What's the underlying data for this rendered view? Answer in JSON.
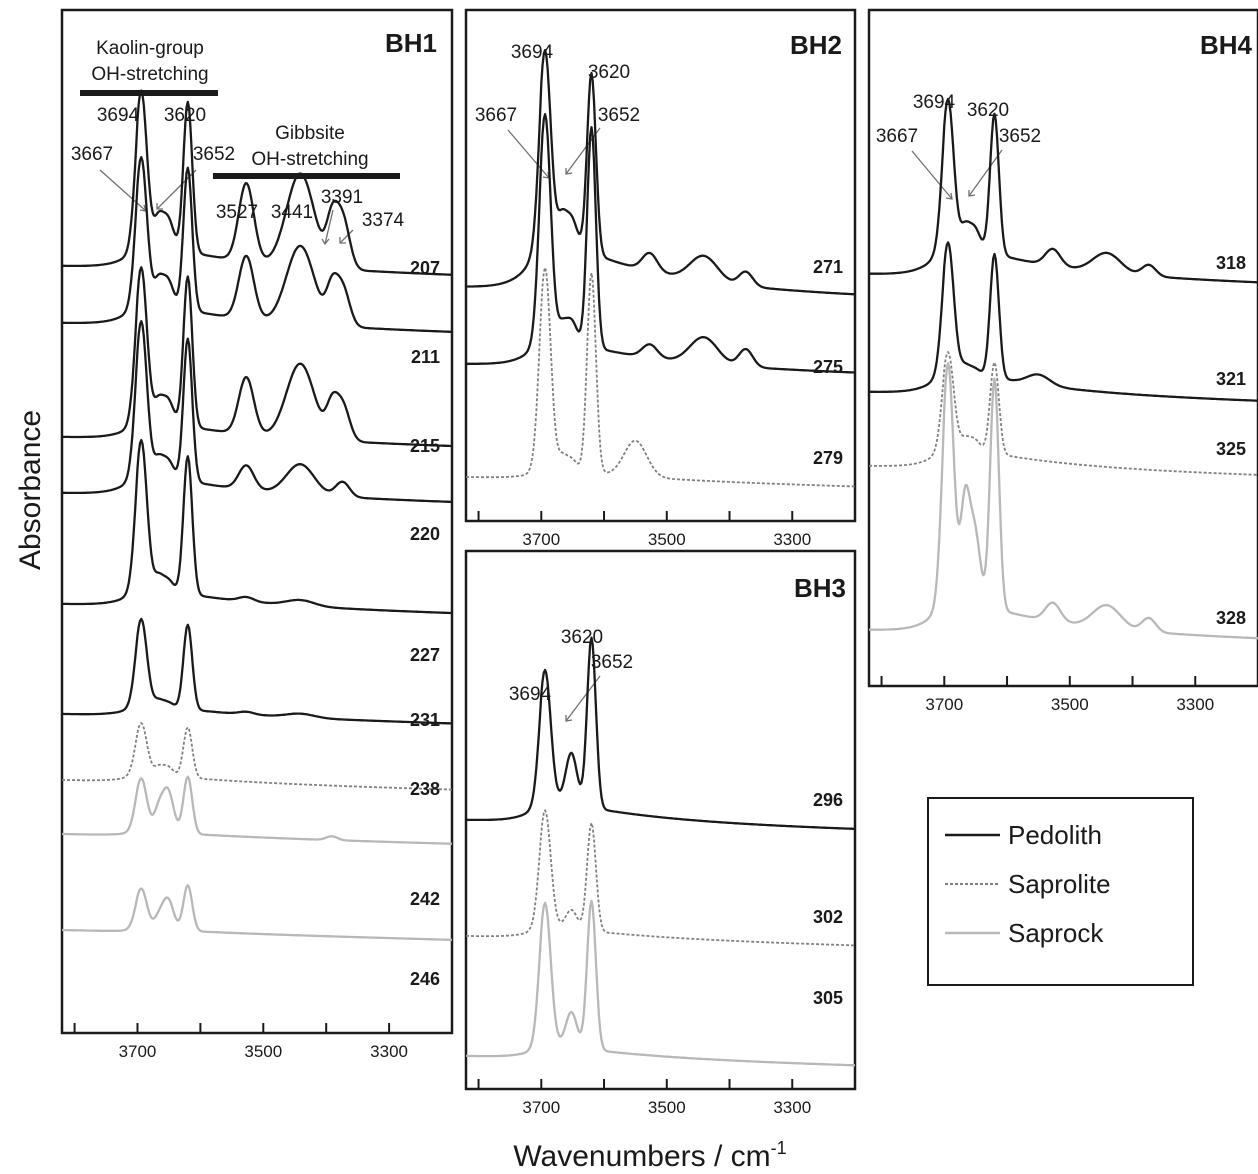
{
  "figure": {
    "ylabel": "Absorbance",
    "xlabel": "Wavenumbers / cm",
    "xlabel_superscript": "-1"
  },
  "colors": {
    "Pedolith": "#1a1a1a",
    "Saprolite": "#808080",
    "Saprock": "#b8b8b8"
  },
  "legend": {
    "items": [
      {
        "label": "Pedolith",
        "style": "solid",
        "color": "#1a1a1a"
      },
      {
        "label": "Saprolite",
        "style": "dashed",
        "color": "#808080"
      },
      {
        "label": "Saprock",
        "style": "solid",
        "color": "#b8b8b8"
      }
    ]
  },
  "chart_data": [
    {
      "type": "line",
      "title": "BH1",
      "xlim": [
        3820,
        3200
      ],
      "xticks": [
        3700,
        3500,
        3300
      ],
      "grid": false,
      "band_labels": [
        {
          "lines": [
            "Kaolin-group",
            "OH-stretching"
          ]
        },
        {
          "lines": [
            "Gibbsite",
            "OH-stretching"
          ]
        }
      ],
      "peak_labels": [
        "3694",
        "3620",
        "3667",
        "3652",
        "3527",
        "3441",
        "3391",
        "3374"
      ],
      "series": [
        {
          "name": "207",
          "layer": "Pedolith",
          "peaks": [
            [
              3694,
              1.0
            ],
            [
              3620,
              1.0
            ],
            [
              3667,
              0.16
            ],
            [
              3652,
              0.2
            ],
            [
              3527,
              0.52
            ],
            [
              3441,
              0.62
            ],
            [
              3391,
              0.28
            ],
            [
              3374,
              0.34
            ]
          ]
        },
        {
          "name": "211",
          "layer": "Pedolith",
          "peaks": [
            [
              3694,
              0.95
            ],
            [
              3620,
              0.95
            ],
            [
              3667,
              0.14
            ],
            [
              3652,
              0.18
            ],
            [
              3527,
              0.42
            ],
            [
              3441,
              0.52
            ],
            [
              3391,
              0.22
            ],
            [
              3374,
              0.26
            ]
          ]
        },
        {
          "name": "215",
          "layer": "Pedolith",
          "peaks": [
            [
              3694,
              1.0
            ],
            [
              3620,
              1.0
            ],
            [
              3667,
              0.12
            ],
            [
              3652,
              0.16
            ],
            [
              3527,
              0.38
            ],
            [
              3441,
              0.5
            ],
            [
              3391,
              0.2
            ],
            [
              3374,
              0.24
            ]
          ]
        },
        {
          "name": "220",
          "layer": "Pedolith",
          "peaks": [
            [
              3694,
              1.0
            ],
            [
              3620,
              0.95
            ],
            [
              3667,
              0.1
            ],
            [
              3652,
              0.12
            ],
            [
              3527,
              0.16
            ],
            [
              3441,
              0.2
            ],
            [
              3374,
              0.1
            ]
          ]
        },
        {
          "name": "227",
          "layer": "Pedolith",
          "peaks": [
            [
              3694,
              1.0
            ],
            [
              3620,
              0.95
            ],
            [
              3667,
              0.08
            ],
            [
              3652,
              0.08
            ],
            [
              3527,
              0.03
            ],
            [
              3441,
              0.04
            ]
          ]
        },
        {
          "name": "231",
          "layer": "Pedolith",
          "peaks": [
            [
              3694,
              0.65
            ],
            [
              3620,
              0.65
            ],
            [
              3667,
              0.04
            ],
            [
              3652,
              0.04
            ],
            [
              3527,
              0.02
            ],
            [
              3441,
              0.03
            ]
          ]
        },
        {
          "name": "238",
          "layer": "Saprolite",
          "peaks": [
            [
              3694,
              0.42
            ],
            [
              3620,
              0.42
            ],
            [
              3667,
              0.06
            ],
            [
              3652,
              0.08
            ]
          ]
        },
        {
          "name": "242",
          "layer": "Saprock",
          "peaks": [
            [
              3694,
              0.55
            ],
            [
              3620,
              0.6
            ],
            [
              3667,
              0.2
            ],
            [
              3652,
              0.45
            ],
            [
              3391,
              0.04
            ]
          ]
        },
        {
          "name": "246",
          "layer": "Saprock",
          "peaks": [
            [
              3694,
              0.42
            ],
            [
              3620,
              0.48
            ],
            [
              3667,
              0.1
            ],
            [
              3652,
              0.33
            ]
          ]
        }
      ]
    },
    {
      "type": "line",
      "title": "BH2",
      "xlim": [
        3820,
        3200
      ],
      "xticks": [
        3700,
        3500,
        3300
      ],
      "grid": false,
      "peak_labels": [
        "3694",
        "3620",
        "3667",
        "3652"
      ],
      "series": [
        {
          "name": "271",
          "layer": "Pedolith",
          "peaks": [
            [
              3694,
              1.0
            ],
            [
              3620,
              1.0
            ],
            [
              3667,
              0.12
            ],
            [
              3652,
              0.15
            ],
            [
              3527,
              0.1
            ],
            [
              3441,
              0.14
            ],
            [
              3374,
              0.08
            ]
          ]
        },
        {
          "name": "275",
          "layer": "Pedolith",
          "peaks": [
            [
              3694,
              1.0
            ],
            [
              3620,
              1.0
            ],
            [
              3667,
              0.06
            ],
            [
              3652,
              0.1
            ],
            [
              3527,
              0.06
            ],
            [
              3441,
              0.12
            ],
            [
              3374,
              0.08
            ]
          ]
        },
        {
          "name": "279",
          "layer": "Saprolite",
          "peaks": [
            [
              3694,
              1.0
            ],
            [
              3620,
              1.0
            ],
            [
              3667,
              0.06
            ],
            [
              3652,
              0.06
            ],
            [
              3550,
              0.18
            ]
          ]
        }
      ]
    },
    {
      "type": "line",
      "title": "BH3",
      "xlim": [
        3820,
        3200
      ],
      "xticks": [
        3700,
        3500,
        3300
      ],
      "grid": false,
      "peak_labels": [
        "3694",
        "3620",
        "3652"
      ],
      "series": [
        {
          "name": "296",
          "layer": "Pedolith",
          "peaks": [
            [
              3694,
              0.75
            ],
            [
              3620,
              1.0
            ],
            [
              3652,
              0.3
            ]
          ]
        },
        {
          "name": "302",
          "layer": "Saprolite",
          "peaks": [
            [
              3694,
              0.85
            ],
            [
              3620,
              0.8
            ],
            [
              3652,
              0.14
            ]
          ]
        },
        {
          "name": "305",
          "layer": "Saprock",
          "peaks": [
            [
              3694,
              0.8
            ],
            [
              3620,
              0.85
            ],
            [
              3652,
              0.2
            ]
          ]
        }
      ]
    },
    {
      "type": "line",
      "title": "BH4",
      "xlim": [
        3820,
        3200
      ],
      "xticks": [
        3700,
        3500,
        3300
      ],
      "grid": false,
      "peak_labels": [
        "3694",
        "3620",
        "3667",
        "3652"
      ],
      "series": [
        {
          "name": "318",
          "layer": "Pedolith",
          "peaks": [
            [
              3694,
              1.0
            ],
            [
              3620,
              1.0
            ],
            [
              3667,
              0.12
            ],
            [
              3652,
              0.15
            ],
            [
              3527,
              0.12
            ],
            [
              3441,
              0.14
            ],
            [
              3374,
              0.08
            ]
          ]
        },
        {
          "name": "321",
          "layer": "Pedolith",
          "peaks": [
            [
              3694,
              0.95
            ],
            [
              3620,
              0.95
            ],
            [
              3667,
              0.04
            ],
            [
              3652,
              0.04
            ],
            [
              3550,
              0.08
            ]
          ]
        },
        {
          "name": "325",
          "layer": "Saprolite",
          "peaks": [
            [
              3694,
              0.7
            ],
            [
              3620,
              0.7
            ],
            [
              3667,
              0.06
            ],
            [
              3652,
              0.08
            ]
          ]
        },
        {
          "name": "328",
          "layer": "Saprock",
          "peaks": [
            [
              3694,
              1.0
            ],
            [
              3620,
              1.0
            ],
            [
              3667,
              0.4
            ],
            [
              3652,
              0.32
            ],
            [
              3527,
              0.08
            ],
            [
              3441,
              0.1
            ],
            [
              3374,
              0.06
            ]
          ]
        }
      ]
    }
  ]
}
